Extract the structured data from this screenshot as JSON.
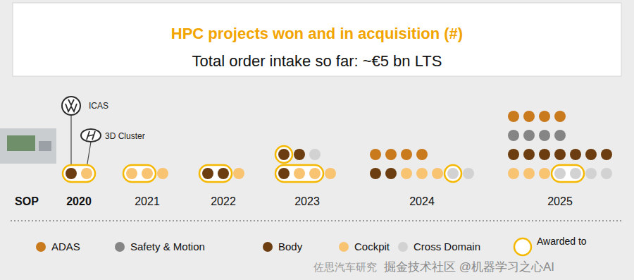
{
  "chart_data": {
    "type": "dot_matrix",
    "title": "HPC projects won and in acquisition (#)",
    "subtitle": "Total order intake so far:  ~€5 bn LTS",
    "x_label": "SOP",
    "categories": [
      "2020",
      "2021",
      "2022",
      "2023",
      "2024",
      "2025"
    ],
    "series": [
      {
        "name": "ADAS",
        "color": "#c97a1c"
      },
      {
        "name": "Safety & Motion",
        "color": "#858585"
      },
      {
        "name": "Body",
        "color": "#6b3d10"
      },
      {
        "name": "Cockpit",
        "color": "#f8c471"
      },
      {
        "name": "Cross Domain",
        "color": "#d2d2d2"
      }
    ],
    "awarded_label": "Awarded to",
    "awarded_color": "#f5b800",
    "annotations": [
      "ICAS",
      "3D Cluster"
    ],
    "dots": [
      [
        [
          {
            "series": "Body",
            "awarded": true
          },
          {
            "series": "Cockpit",
            "awarded": true
          }
        ]
      ],
      [
        [
          {
            "series": "Cockpit",
            "awarded": true
          },
          {
            "series": "Cockpit",
            "awarded": true
          },
          {
            "series": "Cockpit",
            "awarded": false
          }
        ]
      ],
      [
        [
          {
            "series": "Body",
            "awarded": true
          },
          {
            "series": "Body",
            "awarded": true
          },
          {
            "series": "Cockpit",
            "awarded": false
          }
        ]
      ],
      [
        [
          {
            "series": "Body",
            "awarded": true
          },
          {
            "series": "Cockpit",
            "awarded": true
          },
          {
            "series": "Cockpit",
            "awarded": true
          },
          {
            "series": "Cockpit",
            "awarded": false
          }
        ],
        [
          {
            "series": "Body",
            "awarded": true
          },
          {
            "series": "Body",
            "awarded": false
          },
          {
            "series": "Cross Domain",
            "awarded": false
          }
        ]
      ],
      [
        [
          {
            "series": "Body",
            "awarded": false
          },
          {
            "series": "Body",
            "awarded": false
          },
          {
            "series": "Cockpit",
            "awarded": false
          },
          {
            "series": "Cockpit",
            "awarded": false
          },
          {
            "series": "Cockpit",
            "awarded": false
          },
          {
            "series": "Cross Domain",
            "awarded": true
          },
          {
            "series": "Cross Domain",
            "awarded": false
          }
        ],
        [
          {
            "series": "ADAS",
            "awarded": false
          },
          {
            "series": "ADAS",
            "awarded": false
          },
          {
            "series": "ADAS",
            "awarded": false
          },
          {
            "series": "ADAS",
            "awarded": false
          }
        ]
      ],
      [
        [
          {
            "series": "Cockpit",
            "awarded": false
          },
          {
            "series": "Cockpit",
            "awarded": false
          },
          {
            "series": "Cockpit",
            "awarded": false
          },
          {
            "series": "Cross Domain",
            "awarded": true
          },
          {
            "series": "Cross Domain",
            "awarded": true
          },
          {
            "series": "Cross Domain",
            "awarded": false
          },
          {
            "series": "Cross Domain",
            "awarded": false
          }
        ],
        [
          {
            "series": "Body",
            "awarded": false
          },
          {
            "series": "Body",
            "awarded": false
          },
          {
            "series": "Body",
            "awarded": false
          },
          {
            "series": "Body",
            "awarded": false
          },
          {
            "series": "Body",
            "awarded": false
          },
          {
            "series": "Body",
            "awarded": false
          },
          {
            "series": "Body",
            "awarded": false
          }
        ],
        [
          {
            "series": "Safety & Motion",
            "awarded": false
          },
          {
            "series": "Safety & Motion",
            "awarded": false
          },
          {
            "series": "Safety & Motion",
            "awarded": false
          },
          {
            "series": "Safety & Motion",
            "awarded": false
          }
        ],
        [
          {
            "series": "ADAS",
            "awarded": false
          },
          {
            "series": "ADAS",
            "awarded": false
          },
          {
            "series": "ADAS",
            "awarded": false
          },
          {
            "series": "ADAS",
            "awarded": false
          }
        ]
      ]
    ],
    "watermarks": [
      "佐思汽车研究",
      "掘金技术社区 @机器学习之心AI"
    ]
  }
}
